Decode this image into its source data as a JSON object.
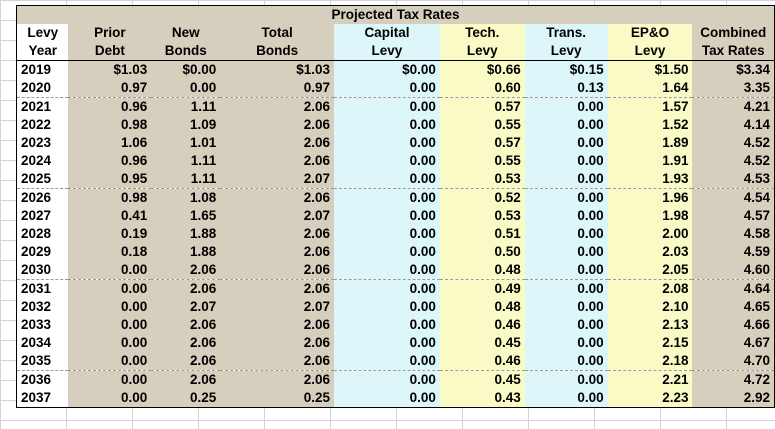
{
  "title": "Projected Tax Rates",
  "headers": {
    "line1": [
      "Levy",
      "Prior",
      "New",
      "Total",
      "Capital",
      "Tech.",
      "Trans.",
      "EP&O",
      "Combined"
    ],
    "line2": [
      "Year",
      "Debt",
      "Bonds",
      "Bonds",
      "Levy",
      "Levy",
      "Levy",
      "Levy",
      "Tax Rates"
    ]
  },
  "rows": [
    [
      "2019",
      "$1.03",
      "$0.00",
      "$1.03",
      "$0.00",
      "$0.66",
      "$0.15",
      "$1.50",
      "$3.34"
    ],
    [
      "2020",
      "0.97",
      "0.00",
      "0.97",
      "0.00",
      "0.60",
      "0.13",
      "1.64",
      "3.35"
    ],
    [
      "2021",
      "0.96",
      "1.11",
      "2.06",
      "0.00",
      "0.57",
      "0.00",
      "1.57",
      "4.21"
    ],
    [
      "2022",
      "0.98",
      "1.09",
      "2.06",
      "0.00",
      "0.55",
      "0.00",
      "1.52",
      "4.14"
    ],
    [
      "2023",
      "1.06",
      "1.01",
      "2.06",
      "0.00",
      "0.57",
      "0.00",
      "1.89",
      "4.52"
    ],
    [
      "2024",
      "0.96",
      "1.11",
      "2.06",
      "0.00",
      "0.55",
      "0.00",
      "1.91",
      "4.52"
    ],
    [
      "2025",
      "0.95",
      "1.11",
      "2.07",
      "0.00",
      "0.53",
      "0.00",
      "1.93",
      "4.53"
    ],
    [
      "2026",
      "0.98",
      "1.08",
      "2.06",
      "0.00",
      "0.52",
      "0.00",
      "1.96",
      "4.54"
    ],
    [
      "2027",
      "0.41",
      "1.65",
      "2.07",
      "0.00",
      "0.53",
      "0.00",
      "1.98",
      "4.57"
    ],
    [
      "2028",
      "0.19",
      "1.88",
      "2.06",
      "0.00",
      "0.51",
      "0.00",
      "2.00",
      "4.58"
    ],
    [
      "2029",
      "0.18",
      "1.88",
      "2.06",
      "0.00",
      "0.50",
      "0.00",
      "2.03",
      "4.59"
    ],
    [
      "2030",
      "0.00",
      "2.06",
      "2.06",
      "0.00",
      "0.48",
      "0.00",
      "2.05",
      "4.60"
    ],
    [
      "2031",
      "0.00",
      "2.06",
      "2.06",
      "0.00",
      "0.49",
      "0.00",
      "2.08",
      "4.64"
    ],
    [
      "2032",
      "0.00",
      "2.07",
      "2.07",
      "0.00",
      "0.48",
      "0.00",
      "2.10",
      "4.65"
    ],
    [
      "2033",
      "0.00",
      "2.06",
      "2.06",
      "0.00",
      "0.46",
      "0.00",
      "2.13",
      "4.66"
    ],
    [
      "2034",
      "0.00",
      "2.06",
      "2.06",
      "0.00",
      "0.45",
      "0.00",
      "2.15",
      "4.67"
    ],
    [
      "2035",
      "0.00",
      "2.06",
      "2.06",
      "0.00",
      "0.46",
      "0.00",
      "2.18",
      "4.70"
    ],
    [
      "2036",
      "0.00",
      "2.06",
      "2.06",
      "0.00",
      "0.45",
      "0.00",
      "2.21",
      "4.72"
    ],
    [
      "2037",
      "0.00",
      "0.25",
      "0.25",
      "0.00",
      "0.43",
      "0.00",
      "2.23",
      "2.92"
    ]
  ],
  "colors": {
    "tan": "#d6cfbe",
    "cyan": "#dcf6f9",
    "yellow": "#fafac6",
    "white": "#ffffff"
  }
}
